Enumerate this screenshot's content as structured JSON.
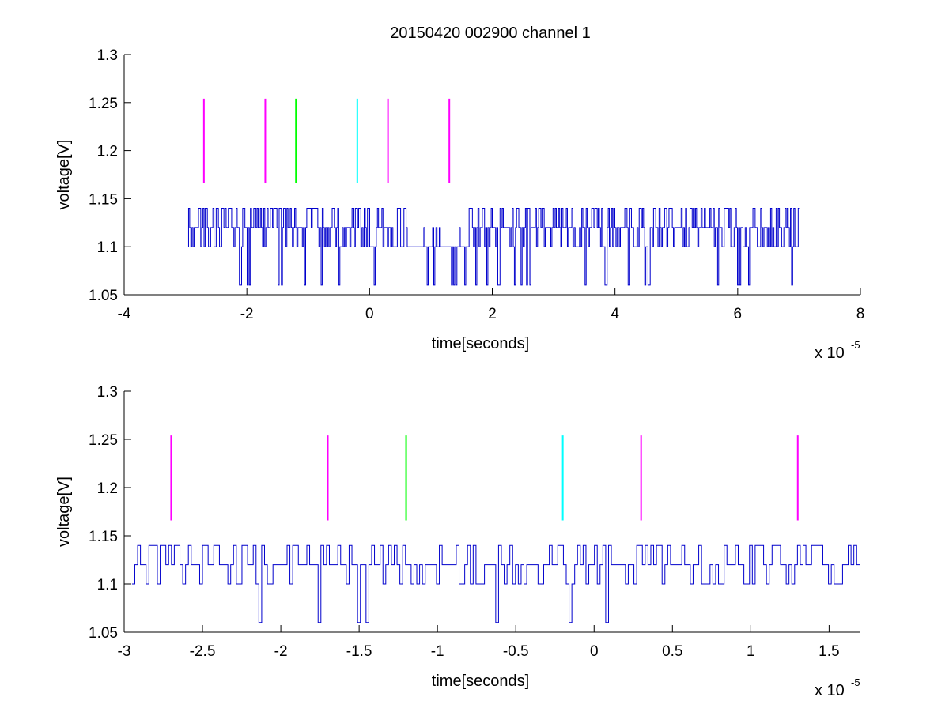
{
  "figure": {
    "title": "20150420 002900 channel 1"
  },
  "chart_data": [
    {
      "type": "line",
      "title": "20150420 002900 channel 1",
      "xlabel": "time[seconds]",
      "ylabel": "voltage[V]",
      "x_multiplier": "x 10",
      "x_multiplier_exp": "-5",
      "xlim": [
        -4,
        8
      ],
      "ylim": [
        1.05,
        1.3
      ],
      "xticks": [
        -4,
        -2,
        0,
        2,
        4,
        6,
        8
      ],
      "xtick_labels": [
        "-4",
        "-2",
        "0",
        "2",
        "4",
        "6",
        "8"
      ],
      "yticks": [
        1.05,
        1.1,
        1.15,
        1.2,
        1.25,
        1.3
      ],
      "ytick_labels": [
        "1.05",
        "1.1",
        "1.15",
        "1.2",
        "1.25",
        "1.3"
      ],
      "grid": false,
      "box": "bottom-left",
      "signal": {
        "color": "#0000cc",
        "x_start": -2.95,
        "x_end": 7.0,
        "levels": [
          1.06,
          1.1,
          1.12,
          1.14
        ],
        "baseline": 1.1,
        "dense_segments": [
          [
            -2.95,
            0.6
          ],
          [
            1.6,
            7.0
          ]
        ],
        "sparse_segments": [
          [
            0.6,
            1.6
          ]
        ]
      },
      "markers": [
        {
          "x": -2.7,
          "y_min": 1.166,
          "y_max": 1.254,
          "color": "#ff00ff"
        },
        {
          "x": -1.7,
          "y_min": 1.166,
          "y_max": 1.254,
          "color": "#ff00ff"
        },
        {
          "x": -1.2,
          "y_min": 1.166,
          "y_max": 1.254,
          "color": "#00ff00"
        },
        {
          "x": -0.2,
          "y_min": 1.166,
          "y_max": 1.254,
          "color": "#00ffff"
        },
        {
          "x": 0.3,
          "y_min": 1.166,
          "y_max": 1.254,
          "color": "#ff00ff"
        },
        {
          "x": 1.3,
          "y_min": 1.166,
          "y_max": 1.254,
          "color": "#ff00ff"
        }
      ]
    },
    {
      "type": "line",
      "xlabel": "time[seconds]",
      "ylabel": "voltage[V]",
      "x_multiplier": "x 10",
      "x_multiplier_exp": "-5",
      "xlim": [
        -3.0,
        1.7
      ],
      "ylim": [
        1.05,
        1.3
      ],
      "xticks": [
        -3,
        -2.5,
        -2,
        -1.5,
        -1,
        -0.5,
        0,
        0.5,
        1,
        1.5
      ],
      "xtick_labels": [
        "-3",
        "-2.5",
        "-2",
        "-1.5",
        "-1",
        "-0.5",
        "0",
        "0.5",
        "1",
        "1.5"
      ],
      "yticks": [
        1.05,
        1.1,
        1.15,
        1.2,
        1.25,
        1.3
      ],
      "ytick_labels": [
        "1.05",
        "1.1",
        "1.15",
        "1.2",
        "1.25",
        "1.3"
      ],
      "grid": false,
      "box": "bottom-left",
      "signal": {
        "color": "#0000cc",
        "x_start": -2.95,
        "x_end": 1.7,
        "levels": [
          1.06,
          1.1,
          1.12,
          1.14
        ],
        "baseline": 1.1,
        "dense_segments": [
          [
            -2.95,
            1.7
          ]
        ],
        "sparse_segments": []
      },
      "markers": [
        {
          "x": -2.7,
          "y_min": 1.166,
          "y_max": 1.254,
          "color": "#ff00ff"
        },
        {
          "x": -1.7,
          "y_min": 1.166,
          "y_max": 1.254,
          "color": "#ff00ff"
        },
        {
          "x": -1.2,
          "y_min": 1.166,
          "y_max": 1.254,
          "color": "#00ff00"
        },
        {
          "x": -0.2,
          "y_min": 1.166,
          "y_max": 1.254,
          "color": "#00ffff"
        },
        {
          "x": 0.3,
          "y_min": 1.166,
          "y_max": 1.254,
          "color": "#ff00ff"
        },
        {
          "x": 1.3,
          "y_min": 1.166,
          "y_max": 1.254,
          "color": "#ff00ff"
        }
      ]
    }
  ]
}
